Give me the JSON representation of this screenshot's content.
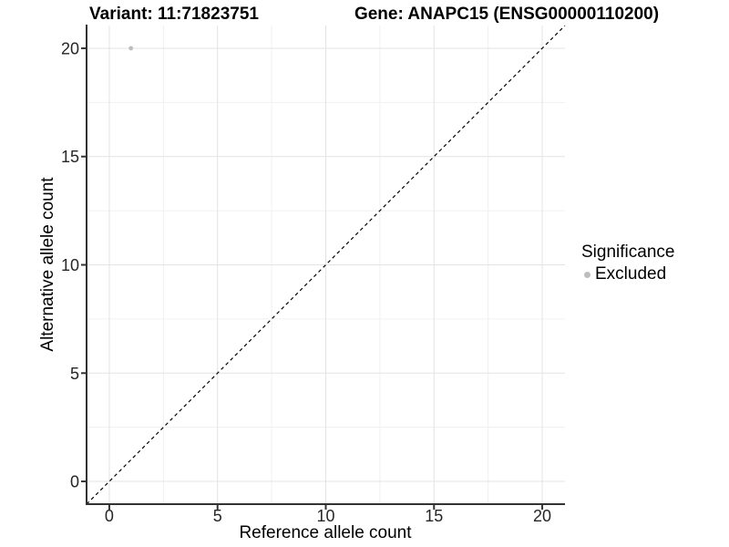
{
  "chart_data": {
    "type": "scatter",
    "titles": {
      "left": "Variant: 11:71823751",
      "right": "Gene: ANAPC15 (ENSG00000110200)"
    },
    "xlabel": "Reference allele count",
    "ylabel": "Alternative allele count",
    "xlim": [
      -1.05,
      21.05
    ],
    "ylim": [
      -1.05,
      21.05
    ],
    "x_ticks": [
      0,
      5,
      10,
      15,
      20
    ],
    "y_ticks": [
      0,
      5,
      10,
      15,
      20
    ],
    "x_minor_ticks": [
      2.5,
      7.5,
      12.5,
      17.5
    ],
    "y_minor_ticks": [
      2.5,
      7.5,
      12.5,
      17.5
    ],
    "grid": "major+minor",
    "points": [
      {
        "x": 1,
        "y": 20,
        "series": "Excluded"
      }
    ],
    "identity_line": {
      "slope": 1,
      "intercept": 0,
      "style": "dashed",
      "color": "#000000"
    },
    "legend": {
      "title": "Significance",
      "position": "right",
      "entries": [
        {
          "label": "Excluded",
          "color": "#bdbdbd"
        }
      ]
    },
    "colors": {
      "grid_major": "#e3e3e3",
      "grid_minor": "#f0f0f0",
      "axis": "#333333",
      "tick_label": "#262626",
      "point_excluded": "#bdbdbd"
    }
  }
}
